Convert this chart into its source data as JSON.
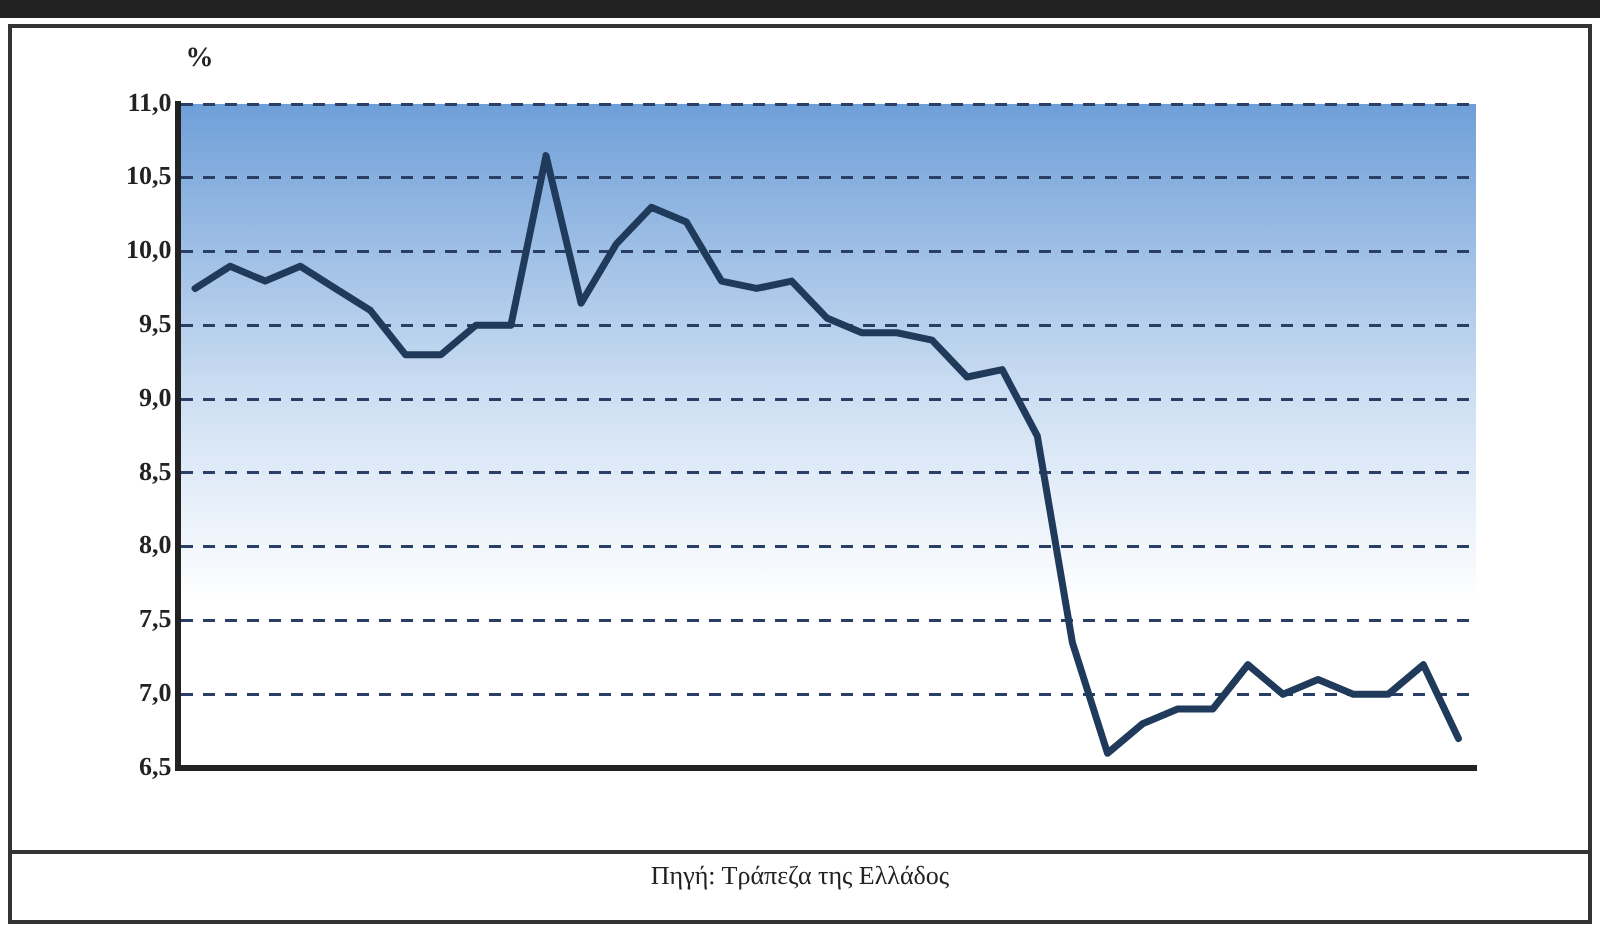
{
  "chart_data": {
    "type": "line",
    "ylabel": "%",
    "categories": [
      null,
      null,
      null,
      null,
      null,
      null,
      null,
      null,
      null,
      null,
      null,
      null,
      null,
      null,
      null,
      null,
      null,
      null,
      null,
      null,
      null,
      null,
      null,
      null,
      null,
      null,
      null,
      null,
      null,
      null,
      null,
      null,
      null,
      null,
      null,
      null,
      null
    ],
    "series": [
      {
        "color": "#1f3a5a",
        "values": [
          9.75,
          9.9,
          9.8,
          9.9,
          9.75,
          9.6,
          9.3,
          9.3,
          9.5,
          9.5,
          10.65,
          9.65,
          10.05,
          10.3,
          10.2,
          9.8,
          9.75,
          9.8,
          9.55,
          9.45,
          9.45,
          9.4,
          9.15,
          9.2,
          8.75,
          7.35,
          6.6,
          6.8,
          6.9,
          6.9,
          7.2,
          7.0,
          7.1,
          7.0,
          7.0,
          7.2,
          6.7
        ]
      }
    ],
    "ylim": [
      6.5,
      11
    ],
    "yticks": [
      {
        "value": 6.5,
        "label": "6,5"
      },
      {
        "value": 7,
        "label": "7,0"
      },
      {
        "value": 7.5,
        "label": "7,5"
      },
      {
        "value": 8,
        "label": "8,0"
      },
      {
        "value": 8.5,
        "label": "8,5"
      },
      {
        "value": 9,
        "label": "9,0"
      },
      {
        "value": 9.5,
        "label": "9,5"
      },
      {
        "value": 10,
        "label": "10,0"
      },
      {
        "value": 10.5,
        "label": "10,5"
      },
      {
        "value": 11,
        "label": "11,0"
      }
    ],
    "grid": "y",
    "legend": false,
    "marker": "none",
    "line_style": "solid",
    "annotations": [
      "Πηγή: Τράπεζα της Ελλάδος"
    ]
  }
}
